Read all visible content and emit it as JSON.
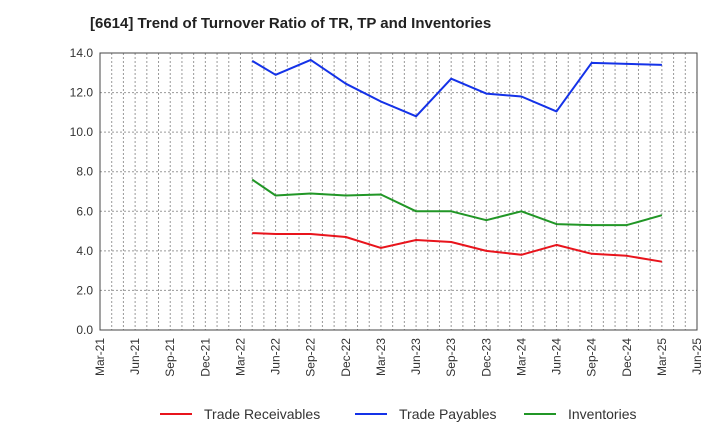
{
  "chart_data": {
    "type": "line",
    "title": "[6614]  Trend of Turnover Ratio of TR, TP and Inventories",
    "xlabel": "",
    "ylabel": "",
    "ylim": [
      0,
      14
    ],
    "yticks": [
      "0.0",
      "2.0",
      "4.0",
      "6.0",
      "8.0",
      "10.0",
      "12.0",
      "14.0"
    ],
    "xticks": [
      "Mar-21",
      "Jun-21",
      "Sep-21",
      "Dec-21",
      "Mar-22",
      "Jun-22",
      "Sep-22",
      "Dec-22",
      "Mar-23",
      "Jun-23",
      "Sep-23",
      "Dec-23",
      "Mar-24",
      "Jun-24",
      "Sep-24",
      "Dec-24",
      "Mar-25",
      "Jun-25"
    ],
    "x": [
      "Apr-22",
      "Jun-22",
      "Sep-22",
      "Dec-22",
      "Mar-23",
      "Jun-23",
      "Sep-23",
      "Dec-23",
      "Mar-24",
      "Jun-24",
      "Sep-24",
      "Dec-24",
      "Mar-25"
    ],
    "grid": true,
    "legend_position": "bottom",
    "series": [
      {
        "name": "Trade Receivables",
        "color": "#e8141c",
        "values": [
          4.9,
          4.85,
          4.85,
          4.7,
          4.15,
          4.55,
          4.45,
          4.0,
          3.8,
          4.3,
          3.85,
          3.75,
          3.45
        ]
      },
      {
        "name": "Trade Payables",
        "color": "#1432e8",
        "values": [
          13.6,
          12.9,
          13.65,
          12.45,
          11.55,
          10.8,
          12.7,
          11.95,
          11.8,
          11.05,
          13.5,
          13.45,
          13.4
        ]
      },
      {
        "name": "Inventories",
        "color": "#219626",
        "values": [
          7.6,
          6.8,
          6.9,
          6.8,
          6.85,
          6.0,
          6.0,
          5.55,
          6.0,
          5.35,
          5.3,
          5.3,
          5.8
        ]
      }
    ]
  }
}
